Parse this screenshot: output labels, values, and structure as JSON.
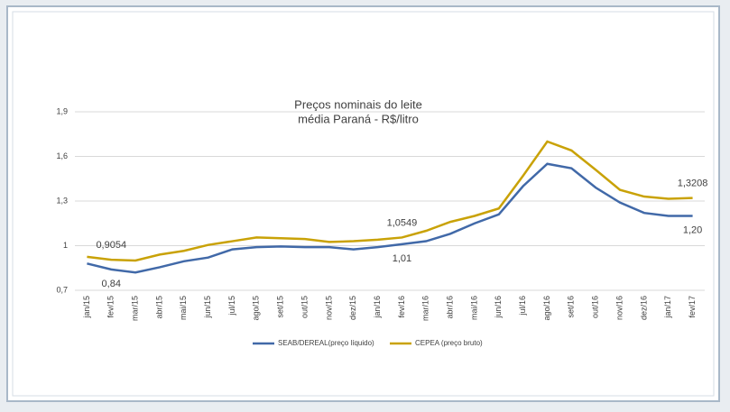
{
  "chart_data": {
    "type": "line",
    "title": "Preços nominais do leite",
    "subtitle": "média Paraná - R$/litro",
    "categories": [
      "jan/15",
      "fev/15",
      "mar/15",
      "abr/15",
      "mai/15",
      "jun/15",
      "jul/15",
      "ago/15",
      "set/15",
      "out/15",
      "nov/15",
      "dez/15",
      "jan/16",
      "fev/16",
      "mar/16",
      "abr/16",
      "mai/16",
      "jun/16",
      "jul/16",
      "ago/16",
      "set/16",
      "out/16",
      "nov/16",
      "dez/16",
      "jan/17",
      "fev/17"
    ],
    "series": [
      {
        "name": "SEAB/DEREAL(preço líquido)",
        "color": "#4169a8",
        "values": [
          0.88,
          0.84,
          0.82,
          0.855,
          0.895,
          0.92,
          0.975,
          0.99,
          0.995,
          0.99,
          0.99,
          0.975,
          0.99,
          1.01,
          1.03,
          1.08,
          1.15,
          1.21,
          1.4,
          1.55,
          1.52,
          1.39,
          1.29,
          1.22,
          1.2,
          1.2
        ],
        "value_labels": [
          null,
          "0,84",
          null,
          null,
          null,
          null,
          null,
          null,
          null,
          null,
          null,
          null,
          null,
          "1,01",
          null,
          null,
          null,
          null,
          null,
          null,
          null,
          null,
          null,
          null,
          null,
          "1,20"
        ]
      },
      {
        "name": "CEPEA (preço bruto)",
        "color": "#c9a207",
        "values": [
          0.925,
          0.9054,
          0.9,
          0.94,
          0.965,
          1.005,
          1.03,
          1.055,
          1.05,
          1.045,
          1.025,
          1.03,
          1.04,
          1.0549,
          1.1,
          1.16,
          1.2,
          1.25,
          1.47,
          1.7,
          1.64,
          1.51,
          1.375,
          1.33,
          1.315,
          1.3208
        ],
        "value_labels": [
          null,
          "0,9054",
          null,
          null,
          null,
          null,
          null,
          null,
          null,
          null,
          null,
          null,
          null,
          "1,0549",
          null,
          null,
          null,
          null,
          null,
          null,
          null,
          null,
          null,
          null,
          null,
          "1,3208"
        ]
      }
    ],
    "ylim": [
      0.7,
      1.9
    ],
    "yticks": [
      {
        "value": 0.7,
        "label": "0,7"
      },
      1,
      {
        "value": 1.3,
        "label": "1,3"
      },
      {
        "value": 1.6,
        "label": "1,6"
      },
      {
        "value": 1.9,
        "label": "1,9"
      }
    ],
    "grid": true
  }
}
